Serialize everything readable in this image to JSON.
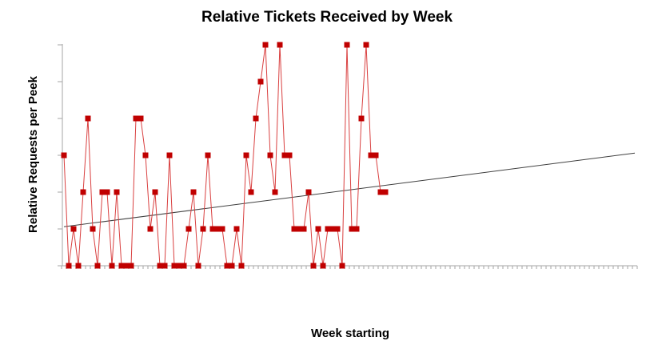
{
  "chart_data": {
    "type": "line",
    "title": "Relative Tickets Received by Week",
    "xlabel": "Week starting",
    "ylabel": "Relative Requests per Peek",
    "ylim": [
      0,
      6
    ],
    "y_gridlines": false,
    "y_tick_labels": false,
    "x_tick_labels": false,
    "x_slots": 120,
    "legend": "none",
    "series": [
      {
        "values": [
          3,
          0,
          1,
          0,
          2,
          4,
          1,
          0,
          2,
          2,
          0,
          2,
          0,
          0,
          0,
          4,
          4,
          3,
          1,
          2,
          0,
          0,
          3,
          0,
          0,
          0,
          1,
          2,
          0,
          1,
          3,
          1,
          1,
          1,
          0,
          0,
          1,
          0,
          3,
          2,
          4,
          5,
          6,
          3,
          2,
          6,
          3,
          3,
          1,
          1,
          1,
          2,
          0,
          1,
          0,
          1,
          1,
          1,
          0,
          6,
          1,
          1,
          4,
          6,
          3,
          3,
          2,
          2
        ]
      }
    ],
    "trendline": {
      "type": "linear",
      "start": {
        "x": 1,
        "y": 1.06
      },
      "end": {
        "x": 120,
        "y": 3.06
      }
    },
    "colors": {
      "series": "#c00000",
      "series_line": "#d94040",
      "trendline": "#404040",
      "axis": "#a6a6a6"
    }
  }
}
